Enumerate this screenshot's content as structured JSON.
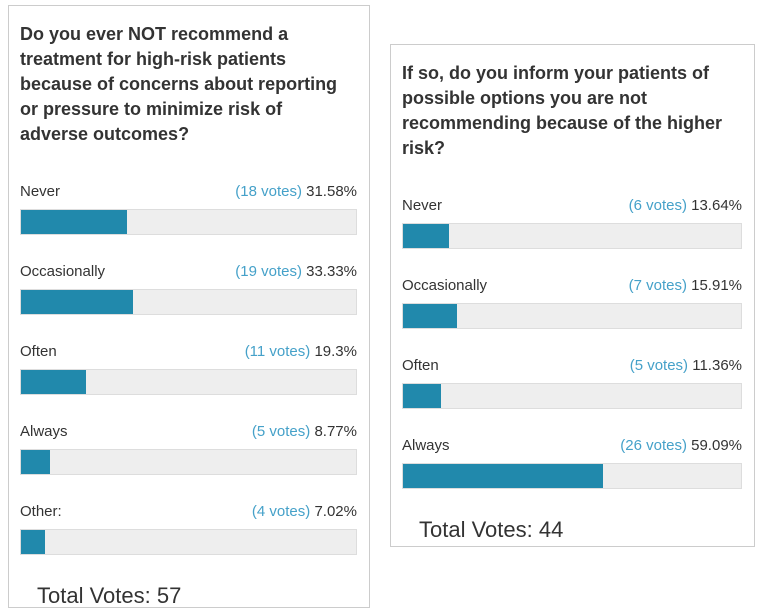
{
  "colors": {
    "bar_fill": "#2189ac",
    "bar_track": "#eeeeee",
    "bar_track_border": "#dddddd",
    "votes_text": "#45a1c9",
    "text": "#333333",
    "panel_border": "#cccccc",
    "background": "#ffffff"
  },
  "chart_data": [
    {
      "type": "bar",
      "orientation": "horizontal",
      "title": "Do you ever NOT recommend a treatment for high-risk patients because of concerns about reporting or pressure to minimize risk of adverse outcomes?",
      "categories": [
        "Never",
        "Occasionally",
        "Often",
        "Always",
        "Other:"
      ],
      "values": [
        31.58,
        33.33,
        19.3,
        8.77,
        7.02
      ],
      "votes": [
        18,
        19,
        11,
        5,
        4
      ],
      "total_votes": 57,
      "total_label": "Total Votes: 57",
      "xlim": [
        0,
        100
      ],
      "rows": [
        {
          "label": "Never",
          "votes_label": "(18 votes)",
          "percent_label": "31.58%",
          "percent": 31.58
        },
        {
          "label": "Occasionally",
          "votes_label": "(19 votes)",
          "percent_label": "33.33%",
          "percent": 33.33
        },
        {
          "label": "Often",
          "votes_label": "(11 votes)",
          "percent_label": "19.3%",
          "percent": 19.3
        },
        {
          "label": "Always",
          "votes_label": "(5 votes)",
          "percent_label": "8.77%",
          "percent": 8.77
        },
        {
          "label": "Other:",
          "votes_label": "(4 votes)",
          "percent_label": "7.02%",
          "percent": 7.02
        }
      ]
    },
    {
      "type": "bar",
      "orientation": "horizontal",
      "title": "If so, do you inform your patients of possible options you are not recommending because of the higher risk?",
      "categories": [
        "Never",
        "Occasionally",
        "Often",
        "Always"
      ],
      "values": [
        13.64,
        15.91,
        11.36,
        59.09
      ],
      "votes": [
        6,
        7,
        5,
        26
      ],
      "total_votes": 44,
      "total_label": "Total Votes: 44",
      "xlim": [
        0,
        100
      ],
      "rows": [
        {
          "label": "Never",
          "votes_label": "(6 votes)",
          "percent_label": "13.64%",
          "percent": 13.64
        },
        {
          "label": "Occasionally",
          "votes_label": "(7 votes)",
          "percent_label": "15.91%",
          "percent": 15.91
        },
        {
          "label": "Often",
          "votes_label": "(5 votes)",
          "percent_label": "11.36%",
          "percent": 11.36
        },
        {
          "label": "Always",
          "votes_label": "(26 votes)",
          "percent_label": "59.09%",
          "percent": 59.09
        }
      ]
    }
  ]
}
